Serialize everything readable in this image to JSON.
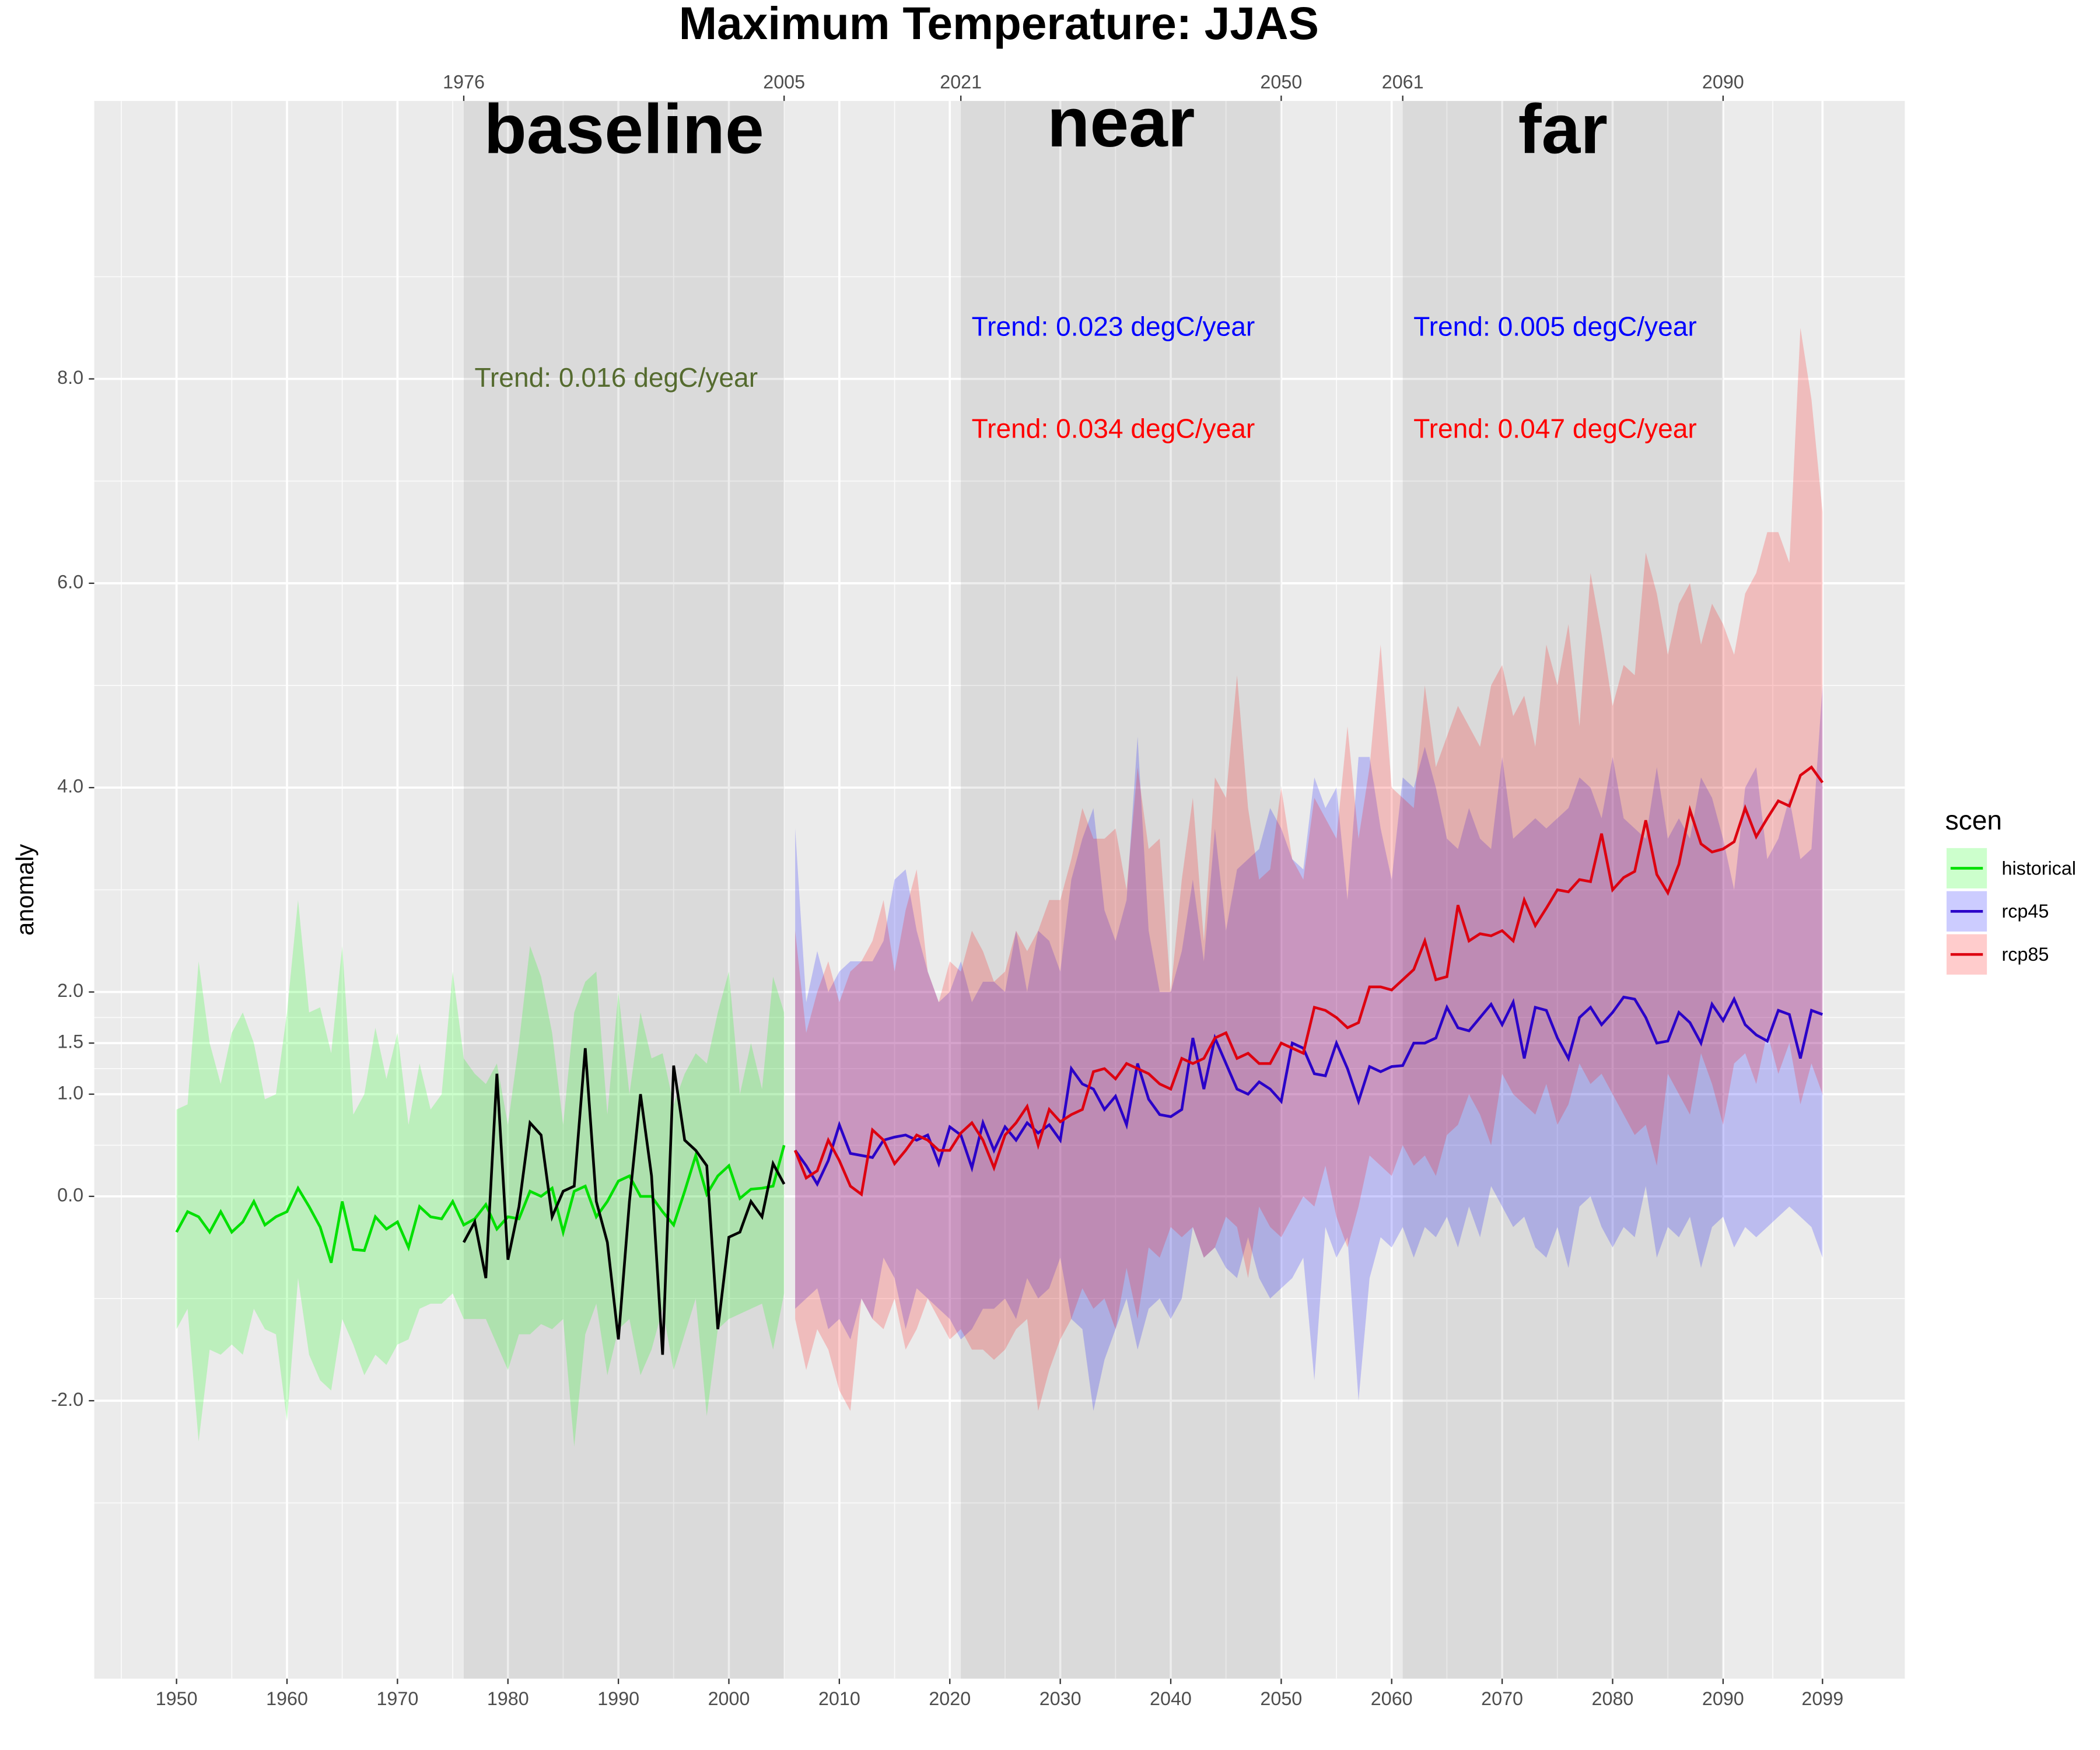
{
  "chart_data": {
    "type": "line",
    "title": "Maximum Temperature: JJAS",
    "y_label": "anomaly",
    "legend_title": "scen",
    "xlim": [
      1942.55,
      2106.45
    ],
    "xticks": [
      1950,
      1960,
      1970,
      1980,
      1990,
      2000,
      2010,
      2020,
      2030,
      2040,
      2050,
      2060,
      2070,
      2080,
      2090,
      2099
    ],
    "ylim": [
      -4.72,
      10.72
    ],
    "yticks": [
      {
        "value": -2,
        "label": "-2.0"
      },
      {
        "value": 0,
        "label": "0.0"
      },
      {
        "value": 1,
        "label": "1.0"
      },
      {
        "value": 1.5,
        "label": "1.5"
      },
      {
        "value": 2,
        "label": "2.0"
      },
      {
        "value": 4,
        "label": "4.0"
      },
      {
        "value": 6,
        "label": "6.0"
      },
      {
        "value": 8,
        "label": "8.0"
      }
    ],
    "grid": true,
    "periods": [
      {
        "name": "baseline",
        "start": 1976,
        "end": 2005,
        "trends": [
          {
            "text": "Trend: 0.016 degC/year",
            "color": "#556b2f"
          }
        ]
      },
      {
        "name": "near",
        "start": 2021,
        "end": 2050,
        "trends": [
          {
            "text": "Trend: 0.023 degC/year",
            "color": "#0000ff"
          },
          {
            "text": "Trend: 0.034 degC/year",
            "color": "#ff0000"
          }
        ]
      },
      {
        "name": "far",
        "start": 2061,
        "end": 2090,
        "trends": [
          {
            "text": "Trend: 0.005 degC/year",
            "color": "#0000ff"
          },
          {
            "text": "Trend: 0.047 degC/year",
            "color": "#ff0000"
          }
        ]
      }
    ],
    "series": [
      {
        "name": "historical",
        "color": "#00e000",
        "fill": "#00ff00",
        "x": [
          1950,
          1951,
          1952,
          1953,
          1954,
          1955,
          1956,
          1957,
          1958,
          1959,
          1960,
          1961,
          1962,
          1963,
          1964,
          1965,
          1966,
          1967,
          1968,
          1969,
          1970,
          1971,
          1972,
          1973,
          1974,
          1975,
          1976,
          1977,
          1978,
          1979,
          1980,
          1981,
          1982,
          1983,
          1984,
          1985,
          1986,
          1987,
          1988,
          1989,
          1990,
          1991,
          1992,
          1993,
          1994,
          1995,
          1996,
          1997,
          1998,
          1999,
          2000,
          2001,
          2002,
          2003,
          2004,
          2005
        ],
        "values": [
          -0.35,
          -0.15,
          -0.2,
          -0.35,
          -0.15,
          -0.35,
          -0.25,
          -0.05,
          -0.28,
          -0.2,
          -0.15,
          0.08,
          -0.1,
          -0.3,
          -0.65,
          -0.05,
          -0.52,
          -0.53,
          -0.2,
          -0.32,
          -0.25,
          -0.5,
          -0.1,
          -0.2,
          -0.22,
          -0.05,
          -0.28,
          -0.22,
          -0.08,
          -0.32,
          -0.2,
          -0.22,
          0.05,
          0.0,
          0.08,
          -0.35,
          0.05,
          0.1,
          -0.2,
          -0.05,
          0.15,
          0.2,
          0.0,
          0.0,
          -0.15,
          -0.28,
          0.05,
          0.4,
          0.02,
          0.2,
          0.3,
          -0.02,
          0.07,
          0.08,
          0.1,
          0.5
        ],
        "upper": [
          0.85,
          0.9,
          2.3,
          1.5,
          1.1,
          1.6,
          1.8,
          1.5,
          0.95,
          1.0,
          1.8,
          2.9,
          1.8,
          1.85,
          1.4,
          2.45,
          0.8,
          1.0,
          1.65,
          1.15,
          1.6,
          0.7,
          1.3,
          0.85,
          1.0,
          2.2,
          1.35,
          1.2,
          1.1,
          1.3,
          0.7,
          1.5,
          2.45,
          2.15,
          1.6,
          0.7,
          1.8,
          2.1,
          2.2,
          0.8,
          2.0,
          1.0,
          1.8,
          1.35,
          1.4,
          0.9,
          1.2,
          1.4,
          1.3,
          1.8,
          2.2,
          1.0,
          1.5,
          1.05,
          2.15,
          1.8
        ],
        "lower": [
          -1.3,
          -1.1,
          -2.4,
          -1.5,
          -1.55,
          -1.45,
          -1.55,
          -1.1,
          -1.3,
          -1.35,
          -2.2,
          -0.8,
          -1.55,
          -1.8,
          -1.9,
          -1.2,
          -1.45,
          -1.75,
          -1.55,
          -1.65,
          -1.45,
          -1.4,
          -1.1,
          -1.05,
          -1.05,
          -0.95,
          -1.2,
          -1.2,
          -1.2,
          -1.45,
          -1.7,
          -1.35,
          -1.35,
          -1.25,
          -1.3,
          -1.2,
          -2.45,
          -1.35,
          -1.05,
          -1.75,
          -1.3,
          -1.2,
          -1.75,
          -1.5,
          -1.1,
          -1.7,
          -1.35,
          -1.0,
          -2.15,
          -1.3,
          -1.2,
          -1.15,
          -1.1,
          -1.05,
          -1.5,
          -0.95
        ]
      },
      {
        "name": "rcp45",
        "color": "#2a00c8",
        "fill": "#0000ff",
        "x": [
          2006,
          2007,
          2008,
          2009,
          2010,
          2011,
          2012,
          2013,
          2014,
          2015,
          2016,
          2017,
          2018,
          2019,
          2020,
          2021,
          2022,
          2023,
          2024,
          2025,
          2026,
          2027,
          2028,
          2029,
          2030,
          2031,
          2032,
          2033,
          2034,
          2035,
          2036,
          2037,
          2038,
          2039,
          2040,
          2041,
          2042,
          2043,
          2044,
          2045,
          2046,
          2047,
          2048,
          2049,
          2050,
          2051,
          2052,
          2053,
          2054,
          2055,
          2056,
          2057,
          2058,
          2059,
          2060,
          2061,
          2062,
          2063,
          2064,
          2065,
          2066,
          2067,
          2068,
          2069,
          2070,
          2071,
          2072,
          2073,
          2074,
          2075,
          2076,
          2077,
          2078,
          2079,
          2080,
          2081,
          2082,
          2083,
          2084,
          2085,
          2086,
          2087,
          2088,
          2089,
          2090,
          2091,
          2092,
          2093,
          2094,
          2095,
          2096,
          2097,
          2098,
          2099
        ],
        "values": [
          0.45,
          0.3,
          0.12,
          0.35,
          0.7,
          0.42,
          0.4,
          0.38,
          0.55,
          0.58,
          0.6,
          0.55,
          0.6,
          0.32,
          0.68,
          0.6,
          0.28,
          0.72,
          0.45,
          0.68,
          0.55,
          0.72,
          0.62,
          0.7,
          0.55,
          1.25,
          1.1,
          1.05,
          0.85,
          0.98,
          0.7,
          1.3,
          0.95,
          0.8,
          0.78,
          0.85,
          1.55,
          1.05,
          1.55,
          1.3,
          1.05,
          1.0,
          1.12,
          1.05,
          0.93,
          1.5,
          1.45,
          1.2,
          1.18,
          1.5,
          1.25,
          0.93,
          1.27,
          1.22,
          1.27,
          1.28,
          1.5,
          1.5,
          1.55,
          1.85,
          1.65,
          1.62,
          1.75,
          1.88,
          1.68,
          1.9,
          1.35,
          1.85,
          1.82,
          1.55,
          1.35,
          1.75,
          1.85,
          1.68,
          1.8,
          1.95,
          1.93,
          1.75,
          1.5,
          1.52,
          1.8,
          1.7,
          1.5,
          1.88,
          1.72,
          1.93,
          1.68,
          1.58,
          1.52,
          1.82,
          1.78,
          1.35,
          1.82,
          1.78
        ],
        "upper": [
          3.6,
          1.9,
          2.4,
          2.0,
          2.2,
          2.3,
          2.3,
          2.3,
          2.5,
          3.1,
          3.2,
          2.6,
          2.2,
          1.9,
          2.0,
          2.3,
          1.9,
          2.1,
          2.1,
          2.0,
          2.6,
          2.0,
          2.6,
          2.5,
          2.2,
          3.1,
          3.5,
          3.8,
          2.8,
          2.5,
          2.9,
          4.5,
          2.6,
          2.0,
          2.0,
          2.4,
          3.1,
          2.3,
          3.6,
          2.6,
          3.2,
          3.3,
          3.4,
          3.8,
          3.6,
          3.3,
          3.2,
          4.1,
          3.8,
          4.0,
          2.9,
          4.3,
          4.3,
          3.6,
          3.1,
          4.1,
          4.0,
          4.4,
          4.0,
          3.5,
          3.4,
          3.8,
          3.5,
          3.4,
          4.3,
          3.5,
          3.6,
          3.7,
          3.6,
          3.7,
          3.8,
          4.1,
          4.0,
          3.7,
          4.3,
          3.7,
          3.6,
          3.5,
          4.2,
          3.5,
          3.7,
          3.5,
          4.1,
          3.9,
          3.5,
          3.0,
          4.0,
          4.2,
          3.3,
          3.5,
          3.9,
          3.3,
          3.4,
          5.0
        ],
        "lower": [
          -1.1,
          -1.0,
          -0.9,
          -1.3,
          -1.2,
          -1.4,
          -1.0,
          -1.2,
          -0.6,
          -0.8,
          -1.3,
          -0.9,
          -1.0,
          -1.1,
          -1.2,
          -1.4,
          -1.3,
          -1.1,
          -1.1,
          -1.0,
          -1.2,
          -0.8,
          -1.0,
          -0.9,
          -0.6,
          -1.2,
          -1.3,
          -2.1,
          -1.6,
          -1.3,
          -1.0,
          -1.5,
          -1.1,
          -1.0,
          -1.2,
          -1.0,
          -0.3,
          -0.6,
          -0.5,
          -0.7,
          -0.8,
          -0.4,
          -0.8,
          -1.0,
          -0.9,
          -0.8,
          -0.6,
          -1.8,
          -0.3,
          -0.6,
          -0.4,
          -2.0,
          -0.8,
          -0.4,
          -0.5,
          -0.3,
          -0.6,
          -0.3,
          -0.4,
          -0.2,
          -0.5,
          -0.1,
          -0.4,
          0.1,
          -0.1,
          -0.3,
          -0.2,
          -0.5,
          -0.6,
          -0.3,
          -0.7,
          -0.1,
          0.0,
          -0.3,
          -0.5,
          -0.3,
          -0.4,
          0.1,
          -0.6,
          -0.3,
          -0.4,
          -0.2,
          -0.7,
          -0.3,
          -0.2,
          -0.5,
          -0.3,
          -0.4,
          -0.3,
          -0.2,
          -0.1,
          -0.2,
          -0.3,
          -0.6
        ]
      },
      {
        "name": "rcp85",
        "color": "#dd0010",
        "fill": "#ff0000",
        "x": [
          2006,
          2007,
          2008,
          2009,
          2010,
          2011,
          2012,
          2013,
          2014,
          2015,
          2016,
          2017,
          2018,
          2019,
          2020,
          2021,
          2022,
          2023,
          2024,
          2025,
          2026,
          2027,
          2028,
          2029,
          2030,
          2031,
          2032,
          2033,
          2034,
          2035,
          2036,
          2037,
          2038,
          2039,
          2040,
          2041,
          2042,
          2043,
          2044,
          2045,
          2046,
          2047,
          2048,
          2049,
          2050,
          2051,
          2052,
          2053,
          2054,
          2055,
          2056,
          2057,
          2058,
          2059,
          2060,
          2061,
          2062,
          2063,
          2064,
          2065,
          2066,
          2067,
          2068,
          2069,
          2070,
          2071,
          2072,
          2073,
          2074,
          2075,
          2076,
          2077,
          2078,
          2079,
          2080,
          2081,
          2082,
          2083,
          2084,
          2085,
          2086,
          2087,
          2088,
          2089,
          2090,
          2091,
          2092,
          2093,
          2094,
          2095,
          2096,
          2097,
          2098,
          2099
        ],
        "values": [
          0.45,
          0.18,
          0.25,
          0.55,
          0.35,
          0.1,
          0.02,
          0.65,
          0.55,
          0.32,
          0.45,
          0.6,
          0.55,
          0.45,
          0.45,
          0.62,
          0.72,
          0.55,
          0.28,
          0.6,
          0.72,
          0.88,
          0.5,
          0.85,
          0.73,
          0.8,
          0.85,
          1.22,
          1.25,
          1.15,
          1.3,
          1.25,
          1.2,
          1.1,
          1.05,
          1.35,
          1.3,
          1.35,
          1.55,
          1.6,
          1.35,
          1.4,
          1.3,
          1.3,
          1.5,
          1.45,
          1.4,
          1.85,
          1.82,
          1.75,
          1.65,
          1.7,
          2.05,
          2.05,
          2.02,
          2.12,
          2.22,
          2.5,
          2.12,
          2.15,
          2.85,
          2.5,
          2.57,
          2.55,
          2.6,
          2.5,
          2.9,
          2.65,
          2.82,
          3.0,
          2.98,
          3.1,
          3.08,
          3.55,
          3.0,
          3.12,
          3.18,
          3.68,
          3.15,
          2.97,
          3.25,
          3.78,
          3.45,
          3.37,
          3.4,
          3.47,
          3.8,
          3.52,
          3.7,
          3.87,
          3.82,
          4.12,
          4.2,
          4.05
        ],
        "upper": [
          2.6,
          1.6,
          2.0,
          2.3,
          1.9,
          2.2,
          2.3,
          2.5,
          2.9,
          2.2,
          2.8,
          3.2,
          2.2,
          1.9,
          2.3,
          2.2,
          2.6,
          2.4,
          2.1,
          2.2,
          2.6,
          2.4,
          2.6,
          2.9,
          2.9,
          3.3,
          3.8,
          3.5,
          3.5,
          3.6,
          3.0,
          4.2,
          3.4,
          3.5,
          2.0,
          3.1,
          3.9,
          2.5,
          4.1,
          3.9,
          5.1,
          3.8,
          3.1,
          3.2,
          4.0,
          3.3,
          3.1,
          3.9,
          3.7,
          3.5,
          4.6,
          3.5,
          4.2,
          5.4,
          4.0,
          3.9,
          3.8,
          5.0,
          4.2,
          4.5,
          4.8,
          4.6,
          4.4,
          5.0,
          5.2,
          4.7,
          4.9,
          4.4,
          5.4,
          5.0,
          5.6,
          4.6,
          6.1,
          5.5,
          4.8,
          5.2,
          5.1,
          6.3,
          5.9,
          5.3,
          5.8,
          6.0,
          5.4,
          5.8,
          5.6,
          5.3,
          5.9,
          6.1,
          6.5,
          6.5,
          6.2,
          8.5,
          7.8,
          6.7
        ],
        "lower": [
          -1.2,
          -1.7,
          -1.3,
          -1.5,
          -1.9,
          -2.1,
          -1.0,
          -1.2,
          -1.3,
          -1.0,
          -1.5,
          -1.3,
          -1.0,
          -1.2,
          -1.4,
          -1.3,
          -1.5,
          -1.5,
          -1.6,
          -1.5,
          -1.3,
          -1.2,
          -2.1,
          -1.7,
          -1.4,
          -1.2,
          -0.9,
          -1.1,
          -1.0,
          -1.3,
          -0.7,
          -1.2,
          -0.5,
          -0.6,
          -0.3,
          -0.4,
          -0.3,
          -0.6,
          -0.5,
          -0.2,
          -0.3,
          -0.8,
          -0.1,
          -0.3,
          -0.4,
          -0.2,
          0.0,
          -0.1,
          0.3,
          -0.2,
          -0.5,
          -0.1,
          0.4,
          0.3,
          0.2,
          0.5,
          0.3,
          0.4,
          0.2,
          0.6,
          0.7,
          1.0,
          0.8,
          0.5,
          1.2,
          1.0,
          0.9,
          0.8,
          1.1,
          0.7,
          0.9,
          1.3,
          1.1,
          1.2,
          1.0,
          0.8,
          0.6,
          0.7,
          0.3,
          1.2,
          1.0,
          0.8,
          1.4,
          1.1,
          0.7,
          1.3,
          1.4,
          1.1,
          1.6,
          1.2,
          1.5,
          0.9,
          1.3,
          1.0
        ]
      }
    ],
    "reference": {
      "color": "#000000",
      "x": [
        1976,
        1977,
        1978,
        1979,
        1980,
        1981,
        1982,
        1983,
        1984,
        1985,
        1986,
        1987,
        1988,
        1989,
        1990,
        1991,
        1992,
        1993,
        1994,
        1995,
        1996,
        1997,
        1998,
        1999,
        2000,
        2001,
        2002,
        2003,
        2004,
        2005
      ],
      "values": [
        -0.45,
        -0.25,
        -0.8,
        1.2,
        -0.62,
        -0.1,
        0.72,
        0.6,
        -0.2,
        0.05,
        0.1,
        1.45,
        -0.05,
        -0.45,
        -1.4,
        -0.05,
        1.0,
        0.2,
        -1.55,
        1.28,
        0.55,
        0.45,
        0.3,
        -1.3,
        -0.4,
        -0.35,
        -0.05,
        -0.2,
        0.32,
        0.12
      ]
    }
  }
}
